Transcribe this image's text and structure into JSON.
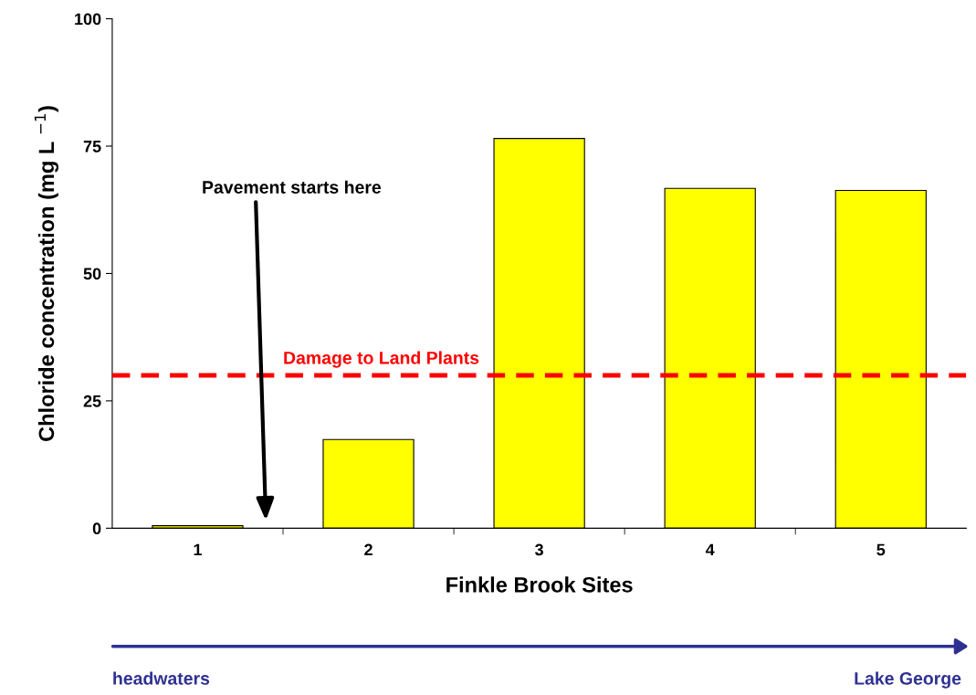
{
  "chart_data": {
    "type": "bar",
    "xlabel": "Finkle Brook Sites",
    "ylabel": "Chloride concentration (mg L $^{−1}$)",
    "categories": [
      "1",
      "2",
      "3",
      "4",
      "5"
    ],
    "values": [
      0.5,
      17.4,
      76.5,
      66.7,
      66.3
    ],
    "color": "#ffff00",
    "ylim": [
      0,
      100
    ],
    "yticks": [
      0,
      25,
      50,
      75,
      100
    ],
    "ref_lines": [
      {
        "axis": "y",
        "value": 30,
        "label": "Damage to Land Plants",
        "color": "#ff0000",
        "line_style": "dashed"
      }
    ],
    "annotations": [
      "Pavement starts here",
      "headwaters",
      "Lake George"
    ]
  }
}
